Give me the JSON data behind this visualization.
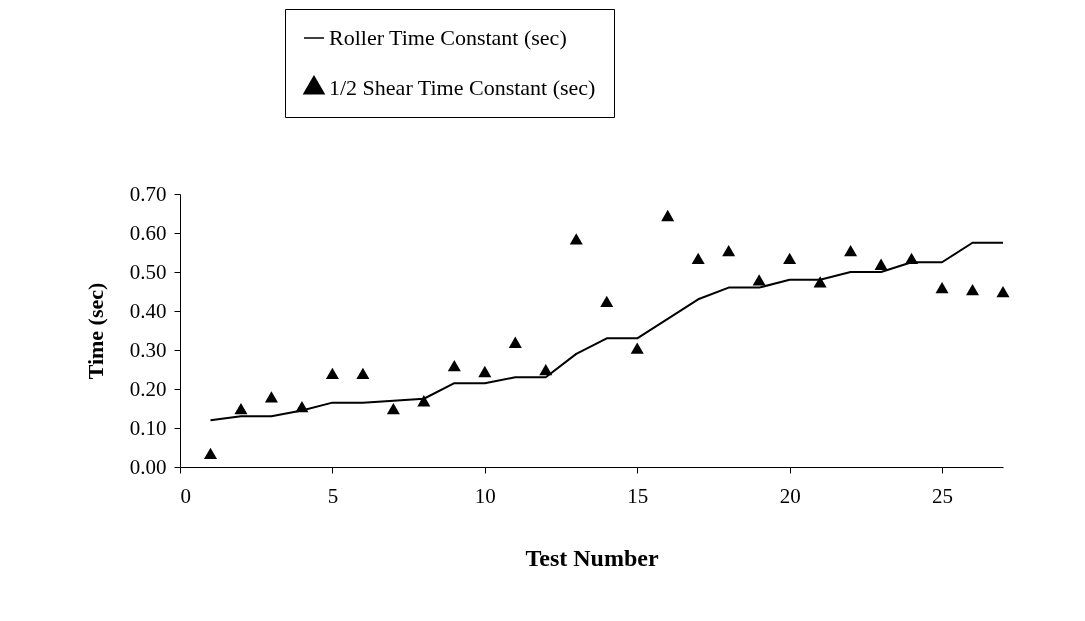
{
  "chart_data": {
    "type": "line",
    "xlabel": "Test Number",
    "ylabel": "Time (sec)",
    "xlim": [
      0,
      27
    ],
    "xticks": [
      0,
      5,
      10,
      15,
      20,
      25
    ],
    "ylim": [
      0,
      0.7
    ],
    "yticks": [
      {
        "value": 0,
        "label": "0.00"
      },
      {
        "value": 0.1,
        "label": "0.10"
      },
      {
        "value": 0.2,
        "label": "0.20"
      },
      {
        "value": 0.3,
        "label": "0.30"
      },
      {
        "value": 0.4,
        "label": "0.40"
      },
      {
        "value": 0.5,
        "label": "0.50"
      },
      {
        "value": 0.6,
        "label": "0.60"
      },
      {
        "value": 0.7,
        "label": "0.70"
      }
    ],
    "x": [
      1,
      2,
      3,
      4,
      5,
      6,
      7,
      8,
      9,
      10,
      11,
      12,
      13,
      14,
      15,
      16,
      17,
      18,
      19,
      20,
      21,
      22,
      23,
      24,
      25,
      26,
      27
    ],
    "series": [
      {
        "name": "Roller Time Constant (sec)",
        "type": "line",
        "color": "#000000",
        "values": [
          0.12,
          0.13,
          0.13,
          0.145,
          0.165,
          0.165,
          0.17,
          0.175,
          0.215,
          0.215,
          0.23,
          0.23,
          0.29,
          0.33,
          0.33,
          0.38,
          0.43,
          0.46,
          0.46,
          0.48,
          0.48,
          0.5,
          0.5,
          0.525,
          0.525,
          0.575,
          0.575
        ]
      },
      {
        "name": "1/2 Shear Time Constant (sec)",
        "type": "scatter",
        "marker": "triangle",
        "color": "#000000",
        "values": [
          0.03,
          0.145,
          0.175,
          0.15,
          0.235,
          0.235,
          0.145,
          0.165,
          0.255,
          0.24,
          0.315,
          0.245,
          0.58,
          0.42,
          0.3,
          0.64,
          0.53,
          0.55,
          0.475,
          0.53,
          0.47,
          0.55,
          0.515,
          0.53,
          0.455,
          0.45,
          0.445
        ]
      }
    ],
    "legend": "top left",
    "grid": false
  }
}
